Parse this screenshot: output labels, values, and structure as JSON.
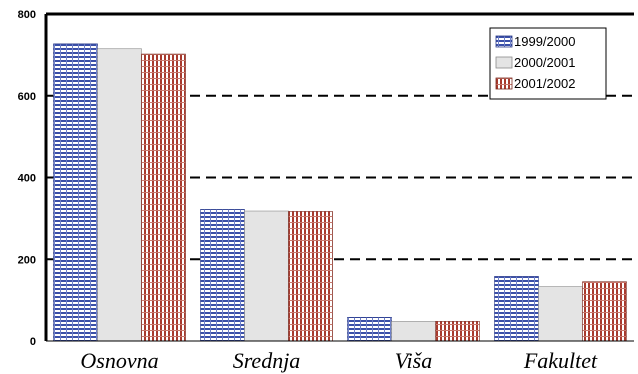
{
  "chart_data": {
    "type": "bar",
    "categories": [
      "Osnovna",
      "Srednja",
      "Viša",
      "Fakultet"
    ],
    "series": [
      {
        "name": "1999/2000",
        "values": [
          727,
          322,
          58,
          158
        ],
        "color": "#3a4fa8",
        "pattern": "horizontal-lines"
      },
      {
        "name": "2000/2001",
        "values": [
          715,
          318,
          48,
          133
        ],
        "color": "#e4e4e4",
        "pattern": "solid"
      },
      {
        "name": "2001/2002",
        "values": [
          702,
          317,
          48,
          145
        ],
        "color": "#a83a2e",
        "pattern": "vertical-lines"
      }
    ],
    "ylim": [
      0,
      800
    ],
    "yticks": [
      "0",
      "200",
      "400",
      "600",
      "800"
    ],
    "grid": "dashed horizontal at 200, 400, 600",
    "legend_position": "top-right"
  }
}
